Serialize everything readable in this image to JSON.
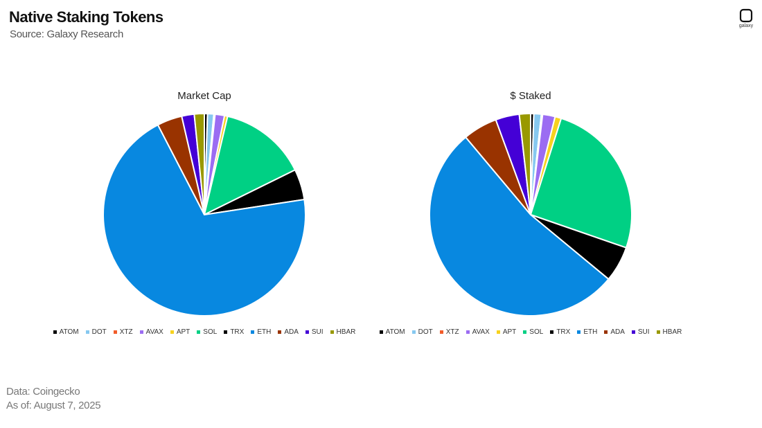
{
  "header": {
    "title": "Native Staking Tokens",
    "subtitle": "Source: Galaxy Research",
    "logo_text": "galaxy"
  },
  "footer": {
    "line1": "Data: Coingecko",
    "line2": "As of: August 7, 2025"
  },
  "chart_data": [
    {
      "type": "pie",
      "title": "Market Cap",
      "categories": [
        "ATOM",
        "DOT",
        "XTZ",
        "AVAX",
        "APT",
        "SOL",
        "TRX",
        "ETH",
        "ADA",
        "SUI",
        "HBAR"
      ],
      "values": [
        0.5,
        1.0,
        0.2,
        1.5,
        0.5,
        14.0,
        4.9,
        69.8,
        4.0,
        2.0,
        1.6
      ],
      "start_angle_deg": 0,
      "direction": "clockwise",
      "legend_position": "bottom",
      "colors": [
        "#000000",
        "#86C8F0",
        "#F25C2A",
        "#9B6CF2",
        "#F7D21E",
        "#00D084",
        "#000000",
        "#0888E0",
        "#993300",
        "#4400D6",
        "#999900"
      ]
    },
    {
      "type": "pie",
      "title": "$ Staked",
      "categories": [
        "ATOM",
        "DOT",
        "XTZ",
        "AVAX",
        "APT",
        "SOL",
        "TRX",
        "ETH",
        "ADA",
        "SUI",
        "HBAR"
      ],
      "values": [
        0.5,
        1.2,
        0.2,
        2.0,
        1.0,
        25.4,
        5.7,
        52.9,
        5.5,
        3.8,
        1.8
      ],
      "start_angle_deg": 0,
      "direction": "clockwise",
      "legend_position": "bottom",
      "colors": [
        "#000000",
        "#86C8F0",
        "#F25C2A",
        "#9B6CF2",
        "#F7D21E",
        "#00D084",
        "#000000",
        "#0888E0",
        "#993300",
        "#4400D6",
        "#999900"
      ]
    }
  ]
}
